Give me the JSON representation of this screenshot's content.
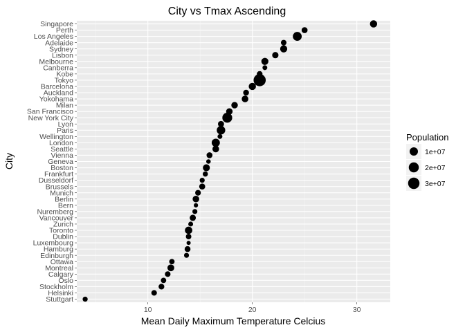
{
  "chart_data": {
    "type": "scatter",
    "title": "City vs Tmax Ascending",
    "xlabel": "Mean Daily Maximum Temperature Celcius",
    "ylabel": "City",
    "xlim": [
      3.2,
      33.2
    ],
    "x_ticks": [
      10,
      20,
      30
    ],
    "x_tick_labels": [
      "10",
      "20",
      "30"
    ],
    "grid": true,
    "legend": {
      "title": "Population",
      "position": "right",
      "entries": [
        {
          "label": "1e+07",
          "value": 10000000
        },
        {
          "label": "2e+07",
          "value": 20000000
        },
        {
          "label": "3e+07",
          "value": 30000000
        }
      ]
    },
    "points": [
      {
        "city": "Singapore",
        "x": 31.6,
        "population": 5600000
      },
      {
        "city": "Perth",
        "x": 25.0,
        "population": 2000000
      },
      {
        "city": "Los Angeles",
        "x": 24.3,
        "population": 13000000
      },
      {
        "city": "Adelaide",
        "x": 23.0,
        "population": 1300000
      },
      {
        "city": "Sydney",
        "x": 23.0,
        "population": 5200000
      },
      {
        "city": "Lisbon",
        "x": 22.2,
        "population": 2800000
      },
      {
        "city": "Melbourne",
        "x": 21.2,
        "population": 5000000
      },
      {
        "city": "Canberra",
        "x": 21.2,
        "population": 400000
      },
      {
        "city": "Kobe",
        "x": 20.7,
        "population": 1500000
      },
      {
        "city": "Tokyo",
        "x": 20.7,
        "population": 37000000
      },
      {
        "city": "Barcelona",
        "x": 20.0,
        "population": 5500000
      },
      {
        "city": "Auckland",
        "x": 19.4,
        "population": 1700000
      },
      {
        "city": "Yokohama",
        "x": 19.3,
        "population": 3700000
      },
      {
        "city": "Milan",
        "x": 18.3,
        "population": 3200000
      },
      {
        "city": "San Francisco",
        "x": 17.8,
        "population": 3300000
      },
      {
        "city": "New York City",
        "x": 17.6,
        "population": 18800000
      },
      {
        "city": "Lyon",
        "x": 17.0,
        "population": 2300000
      },
      {
        "city": "Paris",
        "x": 17.0,
        "population": 11000000
      },
      {
        "city": "Wellington",
        "x": 16.9,
        "population": 400000
      },
      {
        "city": "London",
        "x": 16.5,
        "population": 9500000
      },
      {
        "city": "Seattle",
        "x": 16.5,
        "population": 3900000
      },
      {
        "city": "Vienna",
        "x": 15.9,
        "population": 1900000
      },
      {
        "city": "Geneva",
        "x": 15.8,
        "population": 200000
      },
      {
        "city": "Boston",
        "x": 15.6,
        "population": 4800000
      },
      {
        "city": "Frankfurt",
        "x": 15.5,
        "population": 750000
      },
      {
        "city": "Dusseldorf",
        "x": 15.2,
        "population": 600000
      },
      {
        "city": "Brussels",
        "x": 15.2,
        "population": 2100000
      },
      {
        "city": "Munich",
        "x": 14.8,
        "population": 1500000
      },
      {
        "city": "Berlin",
        "x": 14.6,
        "population": 3600000
      },
      {
        "city": "Bern",
        "x": 14.6,
        "population": 140000
      },
      {
        "city": "Nuremberg",
        "x": 14.5,
        "population": 520000
      },
      {
        "city": "Vancouver",
        "x": 14.3,
        "population": 2500000
      },
      {
        "city": "Zurich",
        "x": 14.1,
        "population": 410000
      },
      {
        "city": "Toronto",
        "x": 13.9,
        "population": 6200000
      },
      {
        "city": "Dublin",
        "x": 13.9,
        "population": 1200000
      },
      {
        "city": "Luxembourg",
        "x": 13.9,
        "population": 120000
      },
      {
        "city": "Hamburg",
        "x": 13.8,
        "population": 1800000
      },
      {
        "city": "Edinburgh",
        "x": 13.7,
        "population": 500000
      },
      {
        "city": "Ottawa",
        "x": 12.3,
        "population": 1000000
      },
      {
        "city": "Montreal",
        "x": 12.2,
        "population": 4200000
      },
      {
        "city": "Calgary",
        "x": 11.9,
        "population": 1400000
      },
      {
        "city": "Oslo",
        "x": 11.5,
        "population": 1000000
      },
      {
        "city": "Stockholm",
        "x": 11.3,
        "population": 1600000
      },
      {
        "city": "Helsinki",
        "x": 10.6,
        "population": 1300000
      },
      {
        "city": "Stuttgart",
        "x": 4.0,
        "population": 600000
      }
    ]
  }
}
